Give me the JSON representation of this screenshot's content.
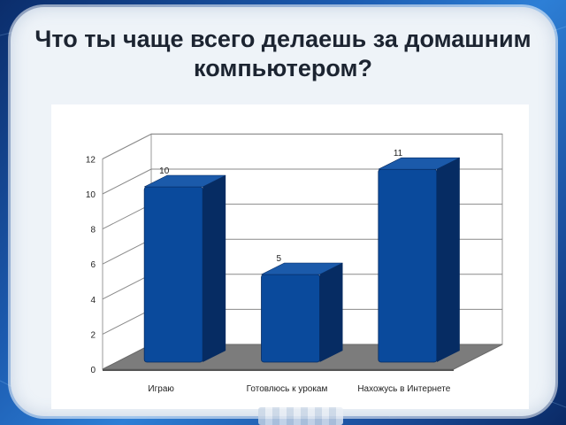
{
  "slide": {
    "title": "Что ты чаще всего делаешь за домашним компьютером?"
  },
  "chart_data": {
    "type": "bar",
    "title": "",
    "xlabel": "",
    "ylabel": "",
    "categories": [
      "Играю",
      "Готовлюсь к урокам",
      "Нахожусь в Интернете"
    ],
    "values": [
      10,
      5,
      11
    ],
    "data_labels": [
      "10",
      "5",
      "11"
    ],
    "yticks": [
      "0",
      "2",
      "4",
      "6",
      "8",
      "10",
      "12"
    ],
    "ylim": [
      0,
      12
    ],
    "grid": true,
    "legend": "none",
    "bar_color": "#0a4a9c",
    "bar_side_color": "#062c63",
    "bar_top_color": "#1b5aaa",
    "floor_color": "#7c7c7c"
  }
}
